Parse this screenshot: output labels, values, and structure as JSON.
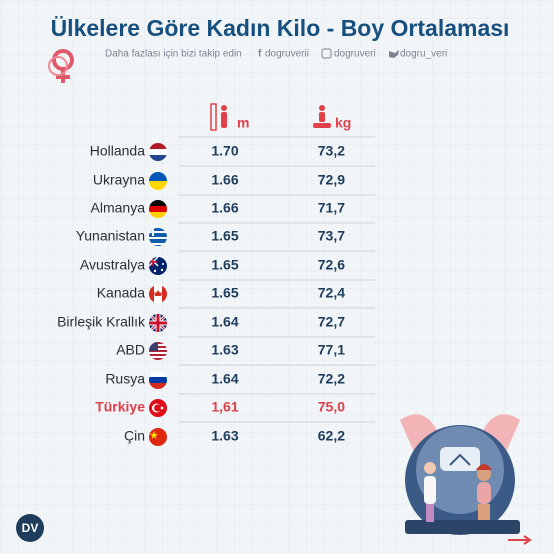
{
  "header": {
    "title": "Ülkelere Göre Kadın Kilo - Boy Ortalaması",
    "subtitle": "Daha fazlası için bizi takip edin",
    "social": {
      "facebook": "dogruverii",
      "instagram": "dogruveri",
      "twitter": "dogru_veri"
    }
  },
  "table": {
    "columns": [
      "m",
      "kg"
    ],
    "rows": [
      [
        "Hollanda",
        "1.70",
        "73,2"
      ],
      [
        "Ukrayna",
        "1.66",
        "72,9"
      ],
      [
        "Almanya",
        "1.66",
        "71,7"
      ],
      [
        "Yunanistan",
        "1.65",
        "73,7"
      ],
      [
        "Avustralya",
        "1.65",
        "72,6"
      ],
      [
        "Kanada",
        "1.65",
        "72,4"
      ],
      [
        "Birleşik Krallık",
        "1.64",
        "72,7"
      ],
      [
        "ABD",
        "1.63",
        "77,1"
      ],
      [
        "Rusya",
        "1.64",
        "72,2"
      ],
      [
        "Türkiye",
        "1,61",
        "75,0"
      ],
      [
        "Çin",
        "1.63",
        "62,2"
      ]
    ]
  },
  "logo": "DV"
}
